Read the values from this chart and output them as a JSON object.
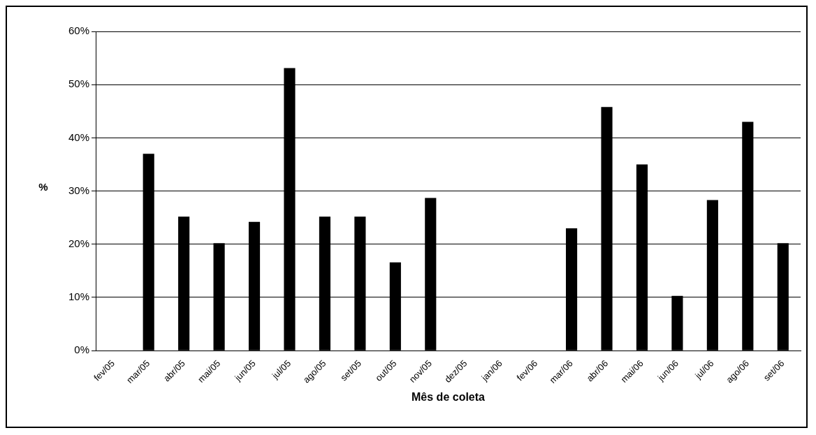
{
  "chart_data": {
    "type": "bar",
    "xlabel": "Mês de coleta",
    "ylabel": "%",
    "categories": [
      "fev/05",
      "mar/05",
      "abr/05",
      "mai/05",
      "jun/05",
      "jul/05",
      "ago/05",
      "set/05",
      "out/05",
      "nov/05",
      "dez/05",
      "jan/06",
      "fev/06",
      "mar/06",
      "abr/06",
      "mai/06",
      "jun/06",
      "jul/06",
      "ago/06",
      "set/06"
    ],
    "values": [
      null,
      37,
      25.2,
      20.2,
      24.2,
      53.1,
      25.2,
      25.2,
      16.6,
      28.7,
      null,
      null,
      null,
      23,
      45.8,
      35,
      10.3,
      28.3,
      43,
      20.2
    ],
    "color": "#000000",
    "ylim": [
      0,
      60
    ],
    "yticks": [
      {
        "value": 0,
        "label": "0%"
      },
      {
        "value": 10,
        "label": "10%"
      },
      {
        "value": 20,
        "label": "20%"
      },
      {
        "value": 30,
        "label": "30%"
      },
      {
        "value": 40,
        "label": "40%"
      },
      {
        "value": 50,
        "label": "50%"
      },
      {
        "value": 60,
        "label": "60%"
      }
    ],
    "grid": "y",
    "legend": false
  }
}
